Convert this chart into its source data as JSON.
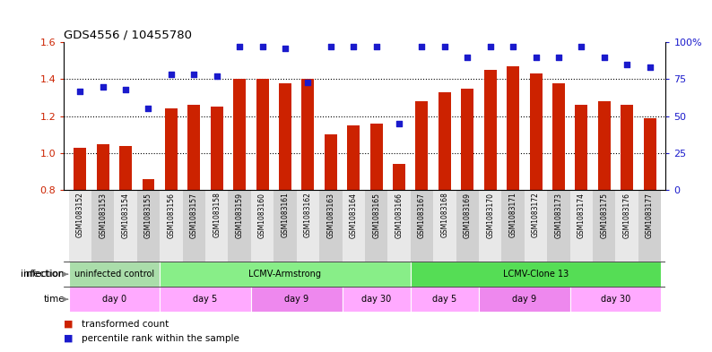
{
  "title": "GDS4556 / 10455780",
  "samples": [
    "GSM1083152",
    "GSM1083153",
    "GSM1083154",
    "GSM1083155",
    "GSM1083156",
    "GSM1083157",
    "GSM1083158",
    "GSM1083159",
    "GSM1083160",
    "GSM1083161",
    "GSM1083162",
    "GSM1083163",
    "GSM1083164",
    "GSM1083165",
    "GSM1083166",
    "GSM1083167",
    "GSM1083168",
    "GSM1083169",
    "GSM1083170",
    "GSM1083171",
    "GSM1083172",
    "GSM1083173",
    "GSM1083174",
    "GSM1083175",
    "GSM1083176",
    "GSM1083177"
  ],
  "bar_values": [
    1.03,
    1.05,
    1.04,
    0.86,
    1.24,
    1.26,
    1.25,
    1.4,
    1.4,
    1.38,
    1.4,
    1.1,
    1.15,
    1.16,
    0.94,
    1.28,
    1.33,
    1.35,
    1.45,
    1.47,
    1.43,
    1.38,
    1.26,
    1.28,
    1.26,
    1.19
  ],
  "dot_percentile": [
    67,
    70,
    68,
    55,
    78,
    78,
    77,
    97,
    97,
    96,
    73,
    97,
    97,
    97,
    45,
    97,
    97,
    90,
    97,
    97,
    90,
    90,
    97,
    90,
    85,
    83
  ],
  "yleft_min": 0.8,
  "yleft_max": 1.6,
  "yright_min": 0,
  "yright_max": 100,
  "yticks_left": [
    0.8,
    1.0,
    1.2,
    1.4,
    1.6
  ],
  "yticks_right": [
    0,
    25,
    50,
    75,
    100
  ],
  "ytick_labels_right": [
    "0",
    "25",
    "50",
    "75",
    "100%"
  ],
  "hgrid_vals": [
    1.0,
    1.2,
    1.4
  ],
  "bar_color": "#cc2200",
  "dot_color": "#1a1acc",
  "infection_groups": [
    {
      "label": "uninfected control",
      "start": 0,
      "end": 3,
      "color": "#aaddaa"
    },
    {
      "label": "LCMV-Armstrong",
      "start": 4,
      "end": 14,
      "color": "#88ee88"
    },
    {
      "label": "LCMV-Clone 13",
      "start": 15,
      "end": 25,
      "color": "#55dd55"
    }
  ],
  "time_groups": [
    {
      "label": "day 0",
      "start": 0,
      "end": 3,
      "color": "#ffaaff"
    },
    {
      "label": "day 5",
      "start": 4,
      "end": 7,
      "color": "#ffaaff"
    },
    {
      "label": "day 9",
      "start": 8,
      "end": 11,
      "color": "#ee88ee"
    },
    {
      "label": "day 30",
      "start": 12,
      "end": 14,
      "color": "#ffaaff"
    },
    {
      "label": "day 5",
      "start": 15,
      "end": 17,
      "color": "#ffaaff"
    },
    {
      "label": "day 9",
      "start": 18,
      "end": 21,
      "color": "#ee88ee"
    },
    {
      "label": "day 30",
      "start": 22,
      "end": 25,
      "color": "#ffaaff"
    }
  ],
  "legend_bar_label": "transformed count",
  "legend_dot_label": "percentile rank within the sample",
  "xtick_bg_even": "#e8e8e8",
  "xtick_bg_odd": "#d0d0d0"
}
